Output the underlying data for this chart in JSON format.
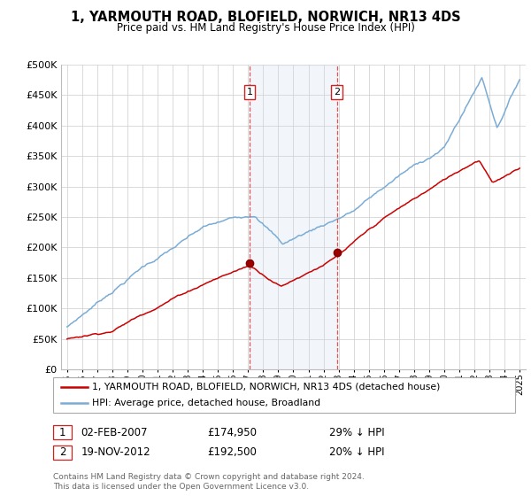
{
  "title": "1, YARMOUTH ROAD, BLOFIELD, NORWICH, NR13 4DS",
  "subtitle": "Price paid vs. HM Land Registry's House Price Index (HPI)",
  "legend_line1": "1, YARMOUTH ROAD, BLOFIELD, NORWICH, NR13 4DS (detached house)",
  "legend_line2": "HPI: Average price, detached house, Broadland",
  "footnote": "Contains HM Land Registry data © Crown copyright and database right 2024.\nThis data is licensed under the Open Government Licence v3.0.",
  "annotation1_label": "1",
  "annotation1_date": "02-FEB-2007",
  "annotation1_price": "£174,950",
  "annotation1_hpi": "29% ↓ HPI",
  "annotation2_label": "2",
  "annotation2_date": "19-NOV-2012",
  "annotation2_price": "£192,500",
  "annotation2_hpi": "20% ↓ HPI",
  "sale1_x": 2007.09,
  "sale1_y": 174950,
  "sale2_x": 2012.89,
  "sale2_y": 192500,
  "hpi_color": "#7aacd6",
  "price_color": "#cc0000",
  "background_color": "#ffffff",
  "grid_color": "#cccccc",
  "span_color": "#ccdcee",
  "ylim_min": 0,
  "ylim_max": 500000,
  "xlim_min": 1994.6,
  "xlim_max": 2025.4,
  "yticks": [
    0,
    50000,
    100000,
    150000,
    200000,
    250000,
    300000,
    350000,
    400000,
    450000,
    500000
  ]
}
